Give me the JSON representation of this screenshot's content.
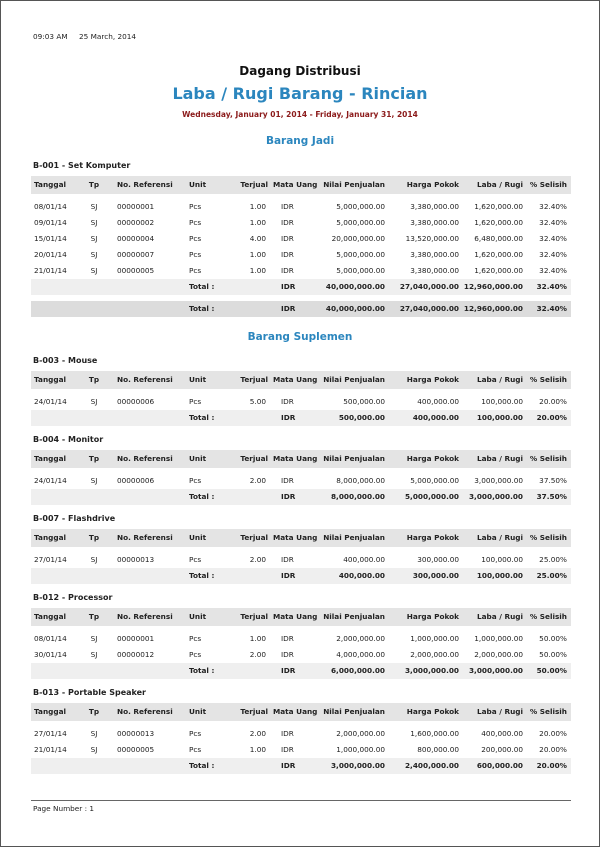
{
  "header": {
    "time": "09:03 AM",
    "date": "25 March, 2014",
    "company": "Dagang Distribusi",
    "title": "Laba / Rugi Barang - Rincian",
    "period": "Wednesday, January 01, 2014 - Friday, January 31, 2014"
  },
  "columns": [
    "Tanggal",
    "Tp",
    "No. Referensi",
    "Unit",
    "Terjual",
    "Mata Uang",
    "Nilai Penjualan",
    "Harga Pokok",
    "Laba / Rugi",
    "% Selisih"
  ],
  "groups": [
    {
      "name": "Barang Jadi",
      "items": [
        {
          "code": "B-001 - Set Komputer",
          "rows": [
            [
              "08/01/14",
              "SJ",
              "00000001",
              "Pcs",
              "1.00",
              "IDR",
              "5,000,000.00",
              "3,380,000.00",
              "1,620,000.00",
              "32.40%"
            ],
            [
              "09/01/14",
              "SJ",
              "00000002",
              "Pcs",
              "1.00",
              "IDR",
              "5,000,000.00",
              "3,380,000.00",
              "1,620,000.00",
              "32.40%"
            ],
            [
              "15/01/14",
              "SJ",
              "00000004",
              "Pcs",
              "4.00",
              "IDR",
              "20,000,000.00",
              "13,520,000.00",
              "6,480,000.00",
              "32.40%"
            ],
            [
              "20/01/14",
              "SJ",
              "00000007",
              "Pcs",
              "1.00",
              "IDR",
              "5,000,000.00",
              "3,380,000.00",
              "1,620,000.00",
              "32.40%"
            ],
            [
              "21/01/14",
              "SJ",
              "00000005",
              "Pcs",
              "1.00",
              "IDR",
              "5,000,000.00",
              "3,380,000.00",
              "1,620,000.00",
              "32.40%"
            ]
          ],
          "total": [
            "Total :",
            "IDR",
            "40,000,000.00",
            "27,040,000.00",
            "12,960,000.00",
            "32.40%"
          ]
        }
      ],
      "total": [
        "Total :",
        "IDR",
        "40,000,000.00",
        "27,040,000.00",
        "12,960,000.00",
        "32.40%"
      ]
    },
    {
      "name": "Barang Suplemen",
      "items": [
        {
          "code": "B-003 - Mouse",
          "rows": [
            [
              "24/01/14",
              "SJ",
              "00000006",
              "Pcs",
              "5.00",
              "IDR",
              "500,000.00",
              "400,000.00",
              "100,000.00",
              "20.00%"
            ]
          ],
          "total": [
            "Total :",
            "IDR",
            "500,000.00",
            "400,000.00",
            "100,000.00",
            "20.00%"
          ]
        },
        {
          "code": "B-004 - Monitor",
          "rows": [
            [
              "24/01/14",
              "SJ",
              "00000006",
              "Pcs",
              "2.00",
              "IDR",
              "8,000,000.00",
              "5,000,000.00",
              "3,000,000.00",
              "37.50%"
            ]
          ],
          "total": [
            "Total :",
            "IDR",
            "8,000,000.00",
            "5,000,000.00",
            "3,000,000.00",
            "37.50%"
          ]
        },
        {
          "code": "B-007 - Flashdrive",
          "rows": [
            [
              "27/01/14",
              "SJ",
              "00000013",
              "Pcs",
              "2.00",
              "IDR",
              "400,000.00",
              "300,000.00",
              "100,000.00",
              "25.00%"
            ]
          ],
          "total": [
            "Total :",
            "IDR",
            "400,000.00",
            "300,000.00",
            "100,000.00",
            "25.00%"
          ]
        },
        {
          "code": "B-012 - Processor",
          "rows": [
            [
              "08/01/14",
              "SJ",
              "00000001",
              "Pcs",
              "1.00",
              "IDR",
              "2,000,000.00",
              "1,000,000.00",
              "1,000,000.00",
              "50.00%"
            ],
            [
              "30/01/14",
              "SJ",
              "00000012",
              "Pcs",
              "2.00",
              "IDR",
              "4,000,000.00",
              "2,000,000.00",
              "2,000,000.00",
              "50.00%"
            ]
          ],
          "total": [
            "Total :",
            "IDR",
            "6,000,000.00",
            "3,000,000.00",
            "3,000,000.00",
            "50.00%"
          ]
        },
        {
          "code": "B-013 - Portable Speaker",
          "rows": [
            [
              "27/01/14",
              "SJ",
              "00000013",
              "Pcs",
              "2.00",
              "IDR",
              "2,000,000.00",
              "1,600,000.00",
              "400,000.00",
              "20.00%"
            ],
            [
              "21/01/14",
              "SJ",
              "00000005",
              "Pcs",
              "1.00",
              "IDR",
              "1,000,000.00",
              "800,000.00",
              "200,000.00",
              "20.00%"
            ]
          ],
          "total": [
            "Total :",
            "IDR",
            "3,000,000.00",
            "2,400,000.00",
            "600,000.00",
            "20.00%"
          ]
        }
      ]
    }
  ],
  "footer": {
    "page": "Page Number : 1"
  }
}
